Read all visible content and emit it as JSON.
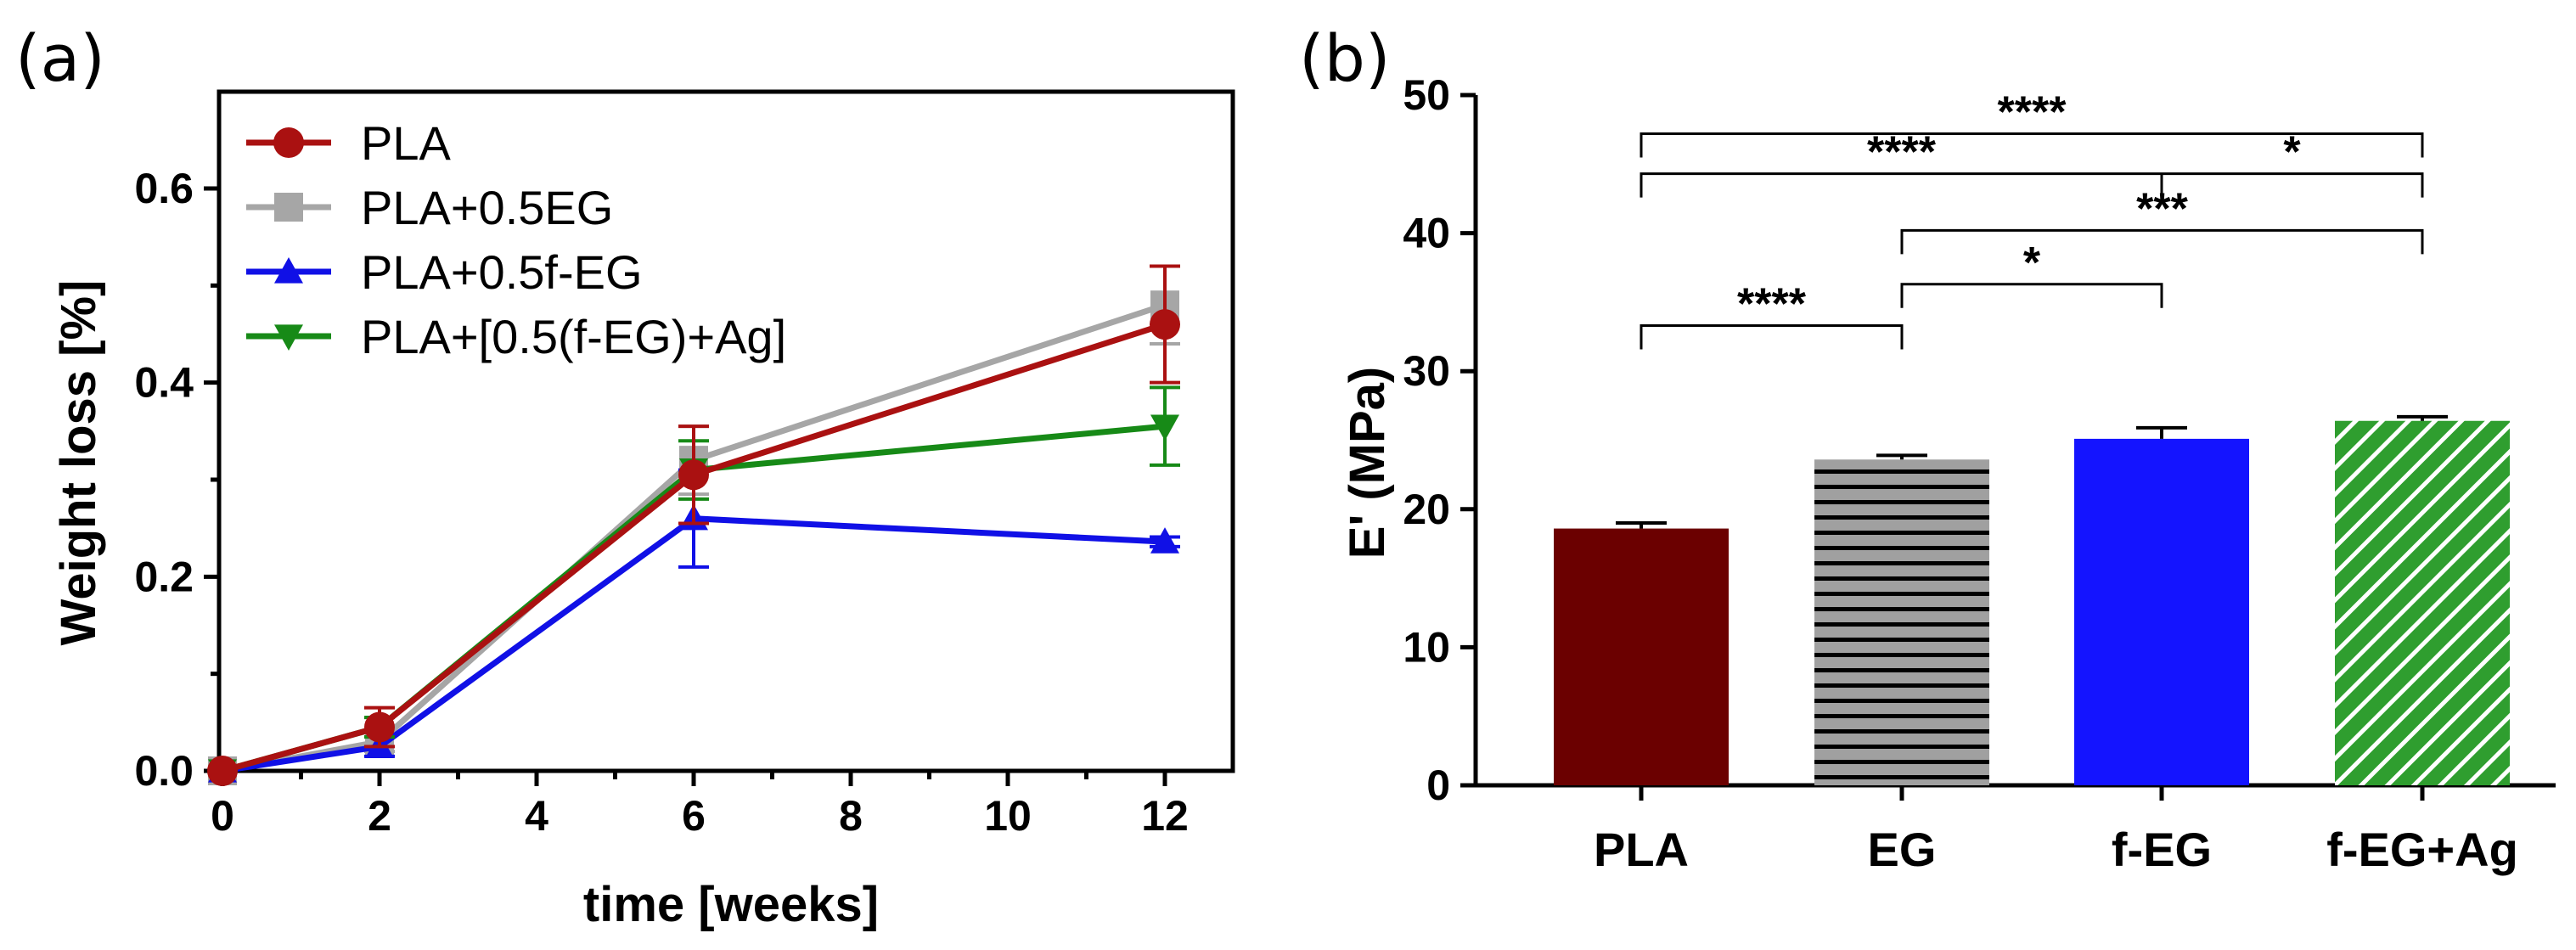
{
  "chart_data": [
    {
      "panel_label": "(a)",
      "type": "line",
      "xlabel": "time [weeks]",
      "ylabel": "Weight loss [%]",
      "xlim": [
        0,
        12.8
      ],
      "ylim": [
        0,
        0.7
      ],
      "xticks": [
        0,
        2,
        4,
        6,
        8,
        10,
        12
      ],
      "xtick_labels": [
        "0",
        "2",
        "4",
        "6",
        "8",
        "10",
        "12"
      ],
      "yticks": [
        0.0,
        0.2,
        0.4,
        0.6
      ],
      "ytick_labels": [
        "0.0",
        "0.2",
        "0.4",
        "0.6"
      ],
      "legend_position": "top-left",
      "series": [
        {
          "name": "PLA+0.5EG",
          "color": "#a6a6a6",
          "marker": "square",
          "x": [
            0,
            2,
            6,
            12
          ],
          "y": [
            0,
            0.03,
            0.32,
            0.48
          ],
          "err": [
            0,
            0.01,
            0.035,
            0.04
          ]
        },
        {
          "name": "PLA+0.5f-EG",
          "color": "#1010e6",
          "marker": "triangle-up",
          "x": [
            0,
            2,
            6,
            12
          ],
          "y": [
            0,
            0.025,
            0.26,
            0.236
          ],
          "err": [
            0,
            0.01,
            0.05,
            0.005
          ]
        },
        {
          "name": "PLA+[0.5(f-EG)+Ag]",
          "color": "#178a17",
          "marker": "triangle-down",
          "x": [
            0,
            2,
            6,
            12
          ],
          "y": [
            0,
            0.045,
            0.31,
            0.355
          ],
          "err": [
            0,
            0.01,
            0.03,
            0.04
          ]
        },
        {
          "name": "PLA",
          "color": "#aa1111",
          "marker": "circle",
          "x": [
            0,
            2,
            6,
            12
          ],
          "y": [
            0,
            0.045,
            0.305,
            0.46
          ],
          "err": [
            0,
            0.02,
            0.05,
            0.06
          ]
        }
      ],
      "legend_order": [
        "PLA",
        "PLA+0.5EG",
        "PLA+0.5f-EG",
        "PLA+[0.5(f-EG)+Ag]"
      ]
    },
    {
      "panel_label": "(b)",
      "type": "bar",
      "xlabel": "",
      "ylabel": "E' (MPa)",
      "ylim": [
        0,
        50
      ],
      "yticks": [
        0,
        10,
        20,
        30,
        40,
        50
      ],
      "ytick_labels": [
        "0",
        "10",
        "20",
        "30",
        "40",
        "50"
      ],
      "categories": [
        "PLA",
        "EG",
        "f-EG",
        "f-EG+Ag"
      ],
      "values": [
        18.6,
        23.6,
        25.1,
        26.4
      ],
      "errors": [
        0.4,
        0.3,
        0.8,
        0.3
      ],
      "colors": [
        "#6b0000",
        "#a0a0a0",
        "#1414ff",
        "#2f9e2f"
      ],
      "fills": [
        "solid",
        "horizontal-hatch",
        "solid",
        "diagonal-hatch"
      ],
      "significance": [
        {
          "from": 0,
          "to": 1,
          "label": "****",
          "level": 33.3
        },
        {
          "from": 1,
          "to": 2,
          "label": "*",
          "level": 36.3
        },
        {
          "from": 1,
          "to": 3,
          "label": "***",
          "level": 40.2
        },
        {
          "from": 0,
          "to": "2|3",
          "label": "****",
          "label2": "*",
          "level": 44.3
        },
        {
          "from": 0,
          "to": 3,
          "label": "****",
          "level": 47.2
        }
      ]
    }
  ]
}
